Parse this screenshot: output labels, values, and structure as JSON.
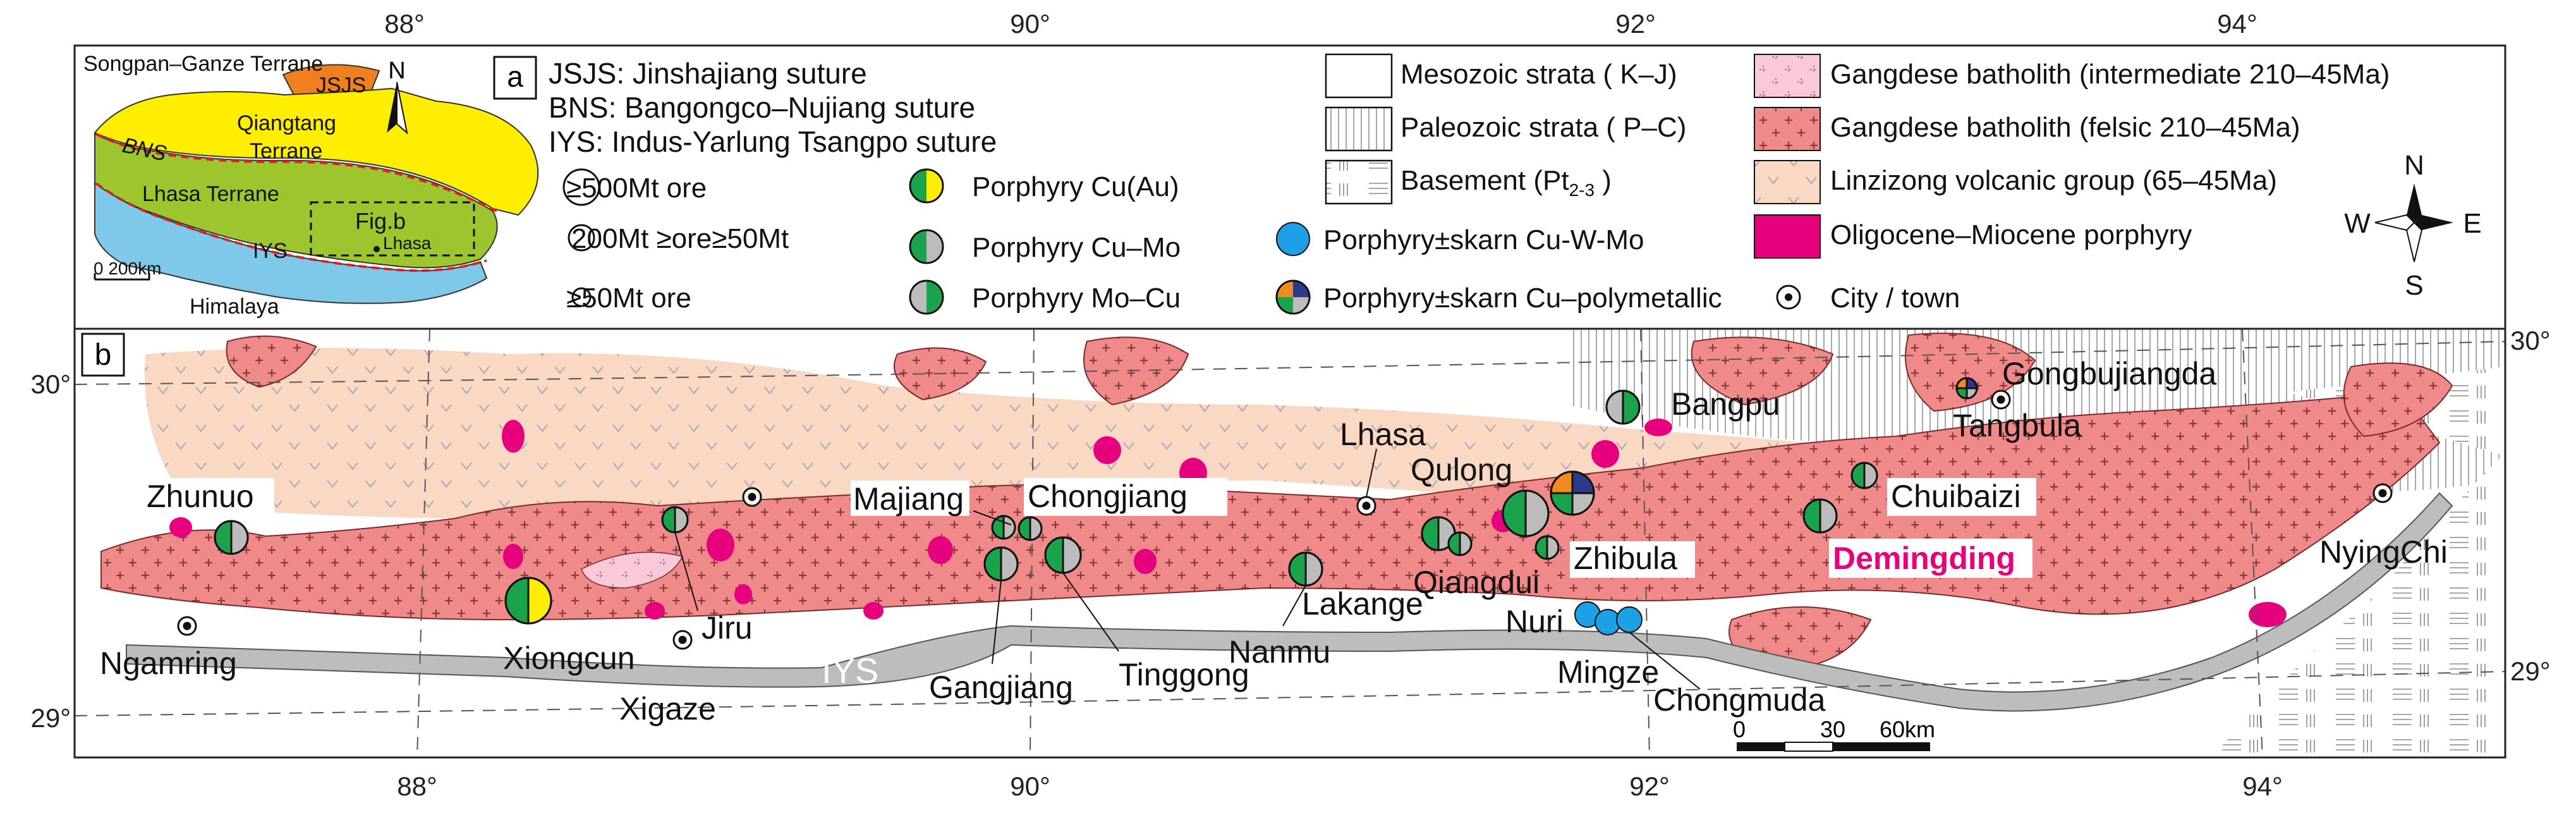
{
  "colors": {
    "felsic": "#f08a8a",
    "intermediate": "#f8c9d8",
    "volcanic": "#f9d8c4",
    "porphyry": "#e6007e",
    "iys": "#bdbdbd",
    "basement": "#ffffff",
    "yellow": "#ffee00",
    "green": "#1aa34a",
    "grey": "#bcbcbc",
    "blue": "#1ea0e6",
    "orange": "#f28b1e",
    "navy": "#2b3a8c",
    "inset_lhasa": "#9dc62e",
    "inset_himalaya": "#7ec8ea",
    "inset_songpan": "#f07f1f",
    "inset_bns": "#e02020"
  },
  "top_axis": [
    "88°",
    "90°",
    "92°",
    "94°"
  ],
  "bottom_axis": [
    "88°",
    "90°",
    "92°",
    "94°"
  ],
  "left_axis": [
    "30°",
    "29°"
  ],
  "right_axis": [
    "30°",
    "29°"
  ],
  "inset": {
    "songpan": "Songpan–Ganze Terrane",
    "jsjs": "JSJS",
    "qiangtang_1": "Qiangtang",
    "qiangtang_2": "Terrane",
    "bns": "BNS",
    "lhasa_terrane": "Lhasa Terrane",
    "iys": "IYS",
    "himalaya": "Himalaya",
    "figb": "Fig.b",
    "lhasa": "Lhasa",
    "north": "N",
    "scale": "0  200km"
  },
  "panel_labels": {
    "a": "a",
    "b": "b"
  },
  "sutures": [
    "JSJS: Jinshajiang suture",
    "BNS: Bangongco–Nujiang suture",
    "IYS: Indus-Yarlung Tsangpo suture"
  ],
  "ore_sizes": [
    "≥500Mt ore",
    "200Mt ≥ore≥50Mt",
    "≥50Mt ore"
  ],
  "deposit_types": [
    "Porphyry Cu(Au)",
    "Porphyry Cu–Mo",
    "Porphyry Mo–Cu",
    "Porphyry±skarn Cu-W-Mo",
    "Porphyry±skarn Cu–polymetallic"
  ],
  "strata": [
    "Mesozoic strata ( K–J)",
    "Paleozoic strata ( P–C)",
    "Basement (Pt"
  ],
  "basement_sub": "2-3",
  "basement_close": " )",
  "magmatic": [
    "Gangdese batholith (intermediate 210–45Ma)",
    "Gangdese batholith (felsic 210–45Ma)",
    "Linzizong volcanic group (65–45Ma)",
    "Oligocene–Miocene porphyry",
    "City / town"
  ],
  "compass": {
    "n": "N",
    "s": "S",
    "e": "E",
    "w": "W"
  },
  "places": {
    "zhunuo": "Zhunuo",
    "ngamring": "Ngamring",
    "xiongcun": "Xiongcun",
    "jiru": "Jiru",
    "xigaze": "Xigaze",
    "majiang": "Majiang",
    "chongjiang": "Chongjiang",
    "gangjiang": "Gangjiang",
    "tinggong": "Tinggong",
    "nanmu": "Nanmu",
    "lakange": "Lakange",
    "lhasa": "Lhasa",
    "qulong": "Qulong",
    "qiangdui": "Qiangdui",
    "zhibula": "Zhibula",
    "nuri": "Nuri",
    "mingze": "Mingze",
    "chongmuda": "Chongmuda",
    "bangpu": "Bangpu",
    "chuibaizi": "Chuibaizi",
    "demingding": "Demingding",
    "gongbujiangda": "Gongbujiangda",
    "tangbula": "Tangbula",
    "nyingchi": "NyingChi",
    "iys": "IYS"
  },
  "scalebar": [
    "0",
    "30",
    "60km"
  ]
}
